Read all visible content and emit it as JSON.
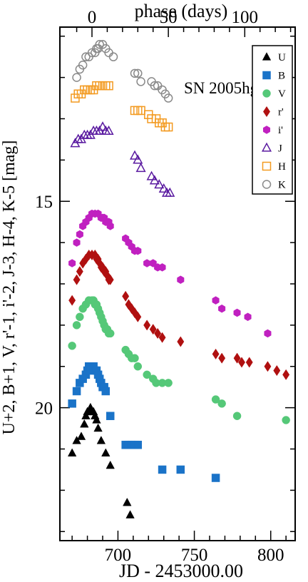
{
  "chart_data": {
    "type": "scatter",
    "title": "SN 2005hg",
    "xlabel": "JD - 2453000.00",
    "ylabel": "U+2, B+1, V, r'-1, i'-2, J-3, H-4, K-5 [mag]",
    "top_xlabel": "phase (days)",
    "xlim": [
      662,
      816
    ],
    "ylim": [
      23.22,
      10.78
    ],
    "y_inverted": true,
    "x_ticks": [
      700,
      750,
      800
    ],
    "x_tick_labels": [
      "700",
      "750",
      "800"
    ],
    "y_ticks": [
      15,
      20
    ],
    "y_tick_labels": [
      "15",
      "20"
    ],
    "top_ticks_jd": [
      683,
      733,
      783
    ],
    "top_tick_labels": [
      "0",
      "50",
      "100"
    ],
    "legend_position": "top-right",
    "grid": false,
    "series": [
      {
        "name": "U",
        "color": "#000000",
        "marker": "triangle-filled",
        "x": [
          670,
          673,
          676,
          678,
          679,
          680,
          681,
          682,
          683,
          684,
          685,
          686,
          687,
          689,
          692,
          695,
          706,
          708
        ],
        "y": [
          21.1,
          20.8,
          20.7,
          20.4,
          20.2,
          20.1,
          20.1,
          20.0,
          20.1,
          20.1,
          20.2,
          20.3,
          20.5,
          20.8,
          21.1,
          21.4,
          22.3,
          22.6
        ]
      },
      {
        "name": "B",
        "color": "#1a73c8",
        "marker": "square-filled",
        "x": [
          670,
          673,
          675,
          677,
          679,
          680,
          681,
          682,
          683,
          684,
          685,
          686,
          687,
          688,
          689,
          690,
          691,
          692,
          695,
          705,
          707,
          709,
          711,
          713,
          729,
          741,
          764
        ],
        "y": [
          19.9,
          19.6,
          19.4,
          19.3,
          19.2,
          19.1,
          19.0,
          19.0,
          19.0,
          19.0,
          19.1,
          19.1,
          19.2,
          19.3,
          19.4,
          19.5,
          19.5,
          19.6,
          20.2,
          20.9,
          20.9,
          20.9,
          20.9,
          20.9,
          21.5,
          21.5,
          21.7
        ]
      },
      {
        "name": "V",
        "color": "#55c878",
        "marker": "circle-filled",
        "x": [
          670,
          673,
          675,
          677,
          679,
          681,
          683,
          684,
          685,
          686,
          687,
          688,
          689,
          690,
          691,
          692,
          693,
          694,
          695,
          705,
          707,
          709,
          711,
          713,
          719,
          723,
          725,
          729,
          733,
          764,
          768,
          778,
          810
        ],
        "y": [
          18.5,
          18.0,
          17.8,
          17.6,
          17.5,
          17.4,
          17.4,
          17.4,
          17.5,
          17.5,
          17.6,
          17.7,
          17.8,
          17.9,
          18.0,
          18.1,
          18.1,
          18.2,
          18.2,
          18.6,
          18.7,
          18.8,
          18.8,
          19.0,
          19.2,
          19.3,
          19.4,
          19.4,
          19.4,
          19.8,
          19.9,
          20.2,
          20.3
        ]
      },
      {
        "name": "r'",
        "color": "#b01010",
        "marker": "diamond-filled",
        "x": [
          670,
          673,
          675,
          677,
          679,
          681,
          683,
          685,
          686,
          687,
          688,
          689,
          690,
          691,
          692,
          693,
          694,
          695,
          705,
          707,
          709,
          711,
          713,
          719,
          723,
          726,
          729,
          741,
          764,
          768,
          778,
          781,
          786,
          798,
          804,
          810
        ],
        "y": [
          17.4,
          16.9,
          16.7,
          16.5,
          16.4,
          16.3,
          16.3,
          16.3,
          16.4,
          16.4,
          16.5,
          16.6,
          16.6,
          16.7,
          16.7,
          16.8,
          16.9,
          16.9,
          17.3,
          17.5,
          17.6,
          17.7,
          17.8,
          18.0,
          18.1,
          18.2,
          18.3,
          18.4,
          18.7,
          18.8,
          18.8,
          18.9,
          18.9,
          19.0,
          19.1,
          19.2
        ]
      },
      {
        "name": "i'",
        "color": "#c020c0",
        "marker": "hexagon-filled",
        "x": [
          670,
          673,
          675,
          677,
          679,
          681,
          683,
          685,
          687,
          689,
          690,
          691,
          692,
          693,
          694,
          695,
          705,
          707,
          709,
          711,
          713,
          719,
          723,
          726,
          729,
          741,
          764,
          768,
          778,
          785,
          798
        ],
        "y": [
          16.5,
          16.0,
          15.8,
          15.6,
          15.5,
          15.4,
          15.3,
          15.3,
          15.3,
          15.4,
          15.4,
          15.4,
          15.5,
          15.5,
          15.5,
          15.6,
          15.9,
          16.0,
          16.1,
          16.2,
          16.2,
          16.5,
          16.5,
          16.6,
          16.6,
          16.9,
          17.4,
          17.6,
          17.7,
          17.8,
          18.2
        ]
      },
      {
        "name": "J",
        "color": "#5a1aa0",
        "marker": "triangle-open",
        "x": [
          672,
          674,
          676,
          678,
          680,
          682,
          684,
          686,
          688,
          690,
          692,
          694,
          711,
          713,
          715,
          722,
          724,
          727,
          730,
          732,
          734
        ],
        "y": [
          13.6,
          13.5,
          13.5,
          13.4,
          13.4,
          13.4,
          13.3,
          13.3,
          13.3,
          13.2,
          13.3,
          13.3,
          13.9,
          14.0,
          14.2,
          14.4,
          14.5,
          14.6,
          14.7,
          14.8,
          14.8
        ]
      },
      {
        "name": "H",
        "color": "#f39a20",
        "marker": "square-open",
        "x": [
          672,
          674,
          676,
          678,
          680,
          682,
          684,
          686,
          688,
          690,
          692,
          694,
          711,
          713,
          715,
          720,
          722,
          725,
          727,
          729,
          731,
          733
        ],
        "y": [
          12.5,
          12.4,
          12.4,
          12.3,
          12.3,
          12.3,
          12.3,
          12.2,
          12.2,
          12.2,
          12.2,
          12.2,
          12.8,
          12.8,
          12.8,
          12.9,
          13.0,
          13.0,
          13.1,
          13.1,
          13.2,
          13.2
        ]
      },
      {
        "name": "K",
        "color": "#8a8a8a",
        "marker": "circle-open",
        "x": [
          673,
          675,
          677,
          679,
          681,
          683,
          685,
          686,
          687,
          688,
          690,
          692,
          694,
          697,
          711,
          713,
          715,
          722,
          724,
          726,
          729,
          731,
          733
        ],
        "y": [
          12.0,
          11.8,
          11.7,
          11.5,
          11.5,
          11.4,
          11.4,
          11.3,
          11.3,
          11.2,
          11.2,
          11.3,
          11.4,
          11.5,
          11.9,
          11.9,
          12.1,
          12.1,
          12.2,
          12.2,
          12.3,
          12.4,
          12.5
        ]
      }
    ]
  }
}
